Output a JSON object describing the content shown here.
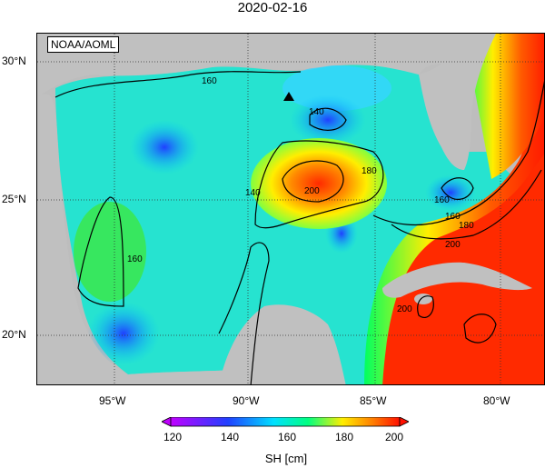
{
  "title": "2020-02-16",
  "credit": "NOAA/AOML",
  "lat_labels": [
    "30°N",
    "25°N",
    "20°N"
  ],
  "lon_labels": [
    "95°W",
    "90°W",
    "85°W",
    "80°W"
  ],
  "colorbar": {
    "ticks": [
      "120",
      "140",
      "160",
      "180",
      "200"
    ],
    "unit": "SH [cm]"
  },
  "contour_labels": [
    "160",
    "140",
    "180",
    "200",
    "160",
    "140",
    "160",
    "180",
    "200",
    "160",
    "200"
  ]
}
